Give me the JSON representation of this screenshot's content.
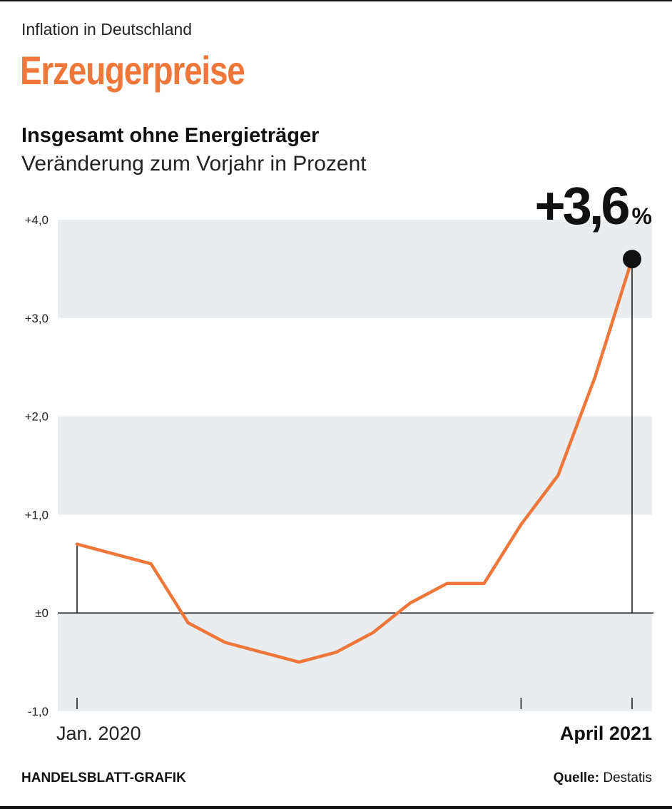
{
  "header": {
    "kicker": "Inflation in Deutschland",
    "title": "Erzeugerpreise",
    "subtitle": "Insgesamt ohne Energieträger",
    "unit": "Veränderung zum Vorjahr in Prozent"
  },
  "footer": {
    "credit": "HANDELSBLATT-GRAFIK",
    "source_label": "Quelle:",
    "source_name": "Destatis"
  },
  "colors": {
    "accent": "#F0773A",
    "band": "#E9EDEF",
    "text": "#222222"
  },
  "chart_data": {
    "type": "line",
    "title": "Insgesamt ohne Energieträger",
    "ylabel": "Veränderung zum Vorjahr in Prozent",
    "ylim": [
      -1.0,
      4.0
    ],
    "y_ticks": [
      4.0,
      3.0,
      2.0,
      1.0,
      0.0,
      -1.0
    ],
    "y_tick_labels": [
      "+4,0",
      "+3,0",
      "+2,0",
      "+1,0",
      "±0",
      "-1,0"
    ],
    "x": [
      "2020-01",
      "2020-02",
      "2020-03",
      "2020-04",
      "2020-05",
      "2020-06",
      "2020-07",
      "2020-08",
      "2020-09",
      "2020-10",
      "2020-11",
      "2020-12",
      "2021-01",
      "2021-02",
      "2021-03",
      "2021-04"
    ],
    "series": [
      {
        "name": "Erzeugerpreise ohne Energieträger",
        "values": [
          0.7,
          0.6,
          0.5,
          -0.1,
          -0.3,
          -0.4,
          -0.5,
          -0.4,
          -0.2,
          0.1,
          0.3,
          0.3,
          0.9,
          1.4,
          2.4,
          3.6
        ]
      }
    ],
    "x_labels": {
      "start": "Jan. 2020",
      "end": "April 2021"
    },
    "callout": {
      "value_text": "+3,6",
      "unit_text": "%"
    }
  }
}
